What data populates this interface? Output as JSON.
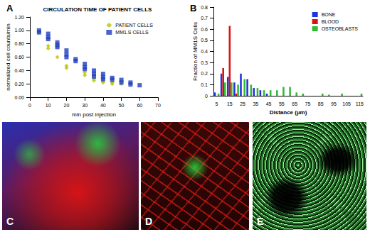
{
  "chart_data": [
    {
      "type": "scatter",
      "annotations": [
        "A"
      ],
      "title": "CIRCULATION TIME OF PATIENT CELLS",
      "x_label": "min post injection",
      "y_label": "normalized cell counts/min",
      "xlim": [
        0,
        70
      ],
      "xticks": [
        0,
        10,
        20,
        30,
        40,
        50,
        60,
        70
      ],
      "ylim": [
        0,
        1.2
      ],
      "yticks": [
        {
          "value": 0,
          "label": "0.00"
        },
        {
          "value": 0.2,
          "label": "0.20"
        },
        {
          "value": 0.4,
          "label": "0.40"
        },
        {
          "value": 0.6,
          "label": "0.60"
        },
        {
          "value": 0.8,
          "label": "0.80"
        },
        {
          "value": 1.0,
          "label": "1.00"
        },
        {
          "value": 1.2,
          "label": "1.20"
        }
      ],
      "legend": "top-right",
      "series": [
        {
          "name": "PATIENT CELLS",
          "color": "#b8c400",
          "marker": "diamond",
          "x": [
            5,
            10,
            10,
            15,
            20,
            20,
            30,
            30,
            35,
            35,
            40,
            40,
            45,
            45,
            50
          ],
          "values": [
            0.97,
            0.77,
            0.73,
            0.6,
            0.47,
            0.44,
            0.37,
            0.33,
            0.28,
            0.25,
            0.24,
            0.22,
            0.22,
            0.2,
            0.2
          ]
        },
        {
          "name": "MM1.S CELLS",
          "color": "#1f3fbf",
          "marker": "square",
          "x": [
            5,
            5,
            10,
            10,
            10,
            15,
            15,
            15,
            20,
            20,
            20,
            25,
            25,
            30,
            30,
            30,
            35,
            35,
            35,
            40,
            40,
            40,
            45,
            45,
            50,
            50,
            55,
            55,
            60
          ],
          "values": [
            1.0,
            0.97,
            0.95,
            0.9,
            0.87,
            0.82,
            0.78,
            0.75,
            0.7,
            0.64,
            0.6,
            0.57,
            0.54,
            0.5,
            0.45,
            0.42,
            0.4,
            0.35,
            0.31,
            0.35,
            0.3,
            0.27,
            0.29,
            0.26,
            0.26,
            0.22,
            0.22,
            0.19,
            0.18
          ]
        }
      ]
    },
    {
      "type": "bar",
      "annotations": [
        "B"
      ],
      "x_label": "Distance (µm)",
      "y_label": "Fraction of MM1S Cells",
      "categories": [
        5,
        null,
        15,
        null,
        25,
        null,
        35,
        null,
        45,
        null,
        55,
        null,
        65,
        null,
        75,
        null,
        85,
        null,
        95,
        null,
        105,
        null,
        115
      ],
      "ylim": [
        0,
        0.8
      ],
      "yticks": [
        0,
        0.1,
        0.2,
        0.3,
        0.4,
        0.5,
        0.6,
        0.7,
        0.8
      ],
      "legend": "top-right",
      "series": [
        {
          "name": "BONE",
          "color": "#2233dd",
          "values": [
            0.03,
            0.2,
            0.17,
            0.12,
            0.2,
            0.15,
            0.07,
            0.05,
            0.02,
            0,
            0,
            0,
            0,
            0,
            0,
            0,
            0,
            0,
            0,
            0,
            0,
            0,
            0
          ]
        },
        {
          "name": "BLOOD",
          "color": "#dd1111",
          "values": [
            0,
            0.25,
            0.63,
            0.02,
            0,
            0,
            0,
            0,
            0,
            0,
            0,
            0,
            0,
            0,
            0,
            0,
            0,
            0,
            0,
            0,
            0,
            0,
            0
          ]
        },
        {
          "name": "OSTEOBLASTS",
          "color": "#33bb33",
          "values": [
            0.02,
            0.12,
            0.12,
            0.1,
            0.15,
            0.1,
            0.07,
            0.05,
            0.05,
            0.05,
            0.08,
            0.08,
            0.03,
            0.02,
            0,
            0,
            0.02,
            0.01,
            0,
            0.02,
            0,
            0,
            0.02
          ]
        }
      ]
    }
  ],
  "images": [
    {
      "label": "C"
    },
    {
      "label": "D"
    },
    {
      "label": "E"
    }
  ]
}
